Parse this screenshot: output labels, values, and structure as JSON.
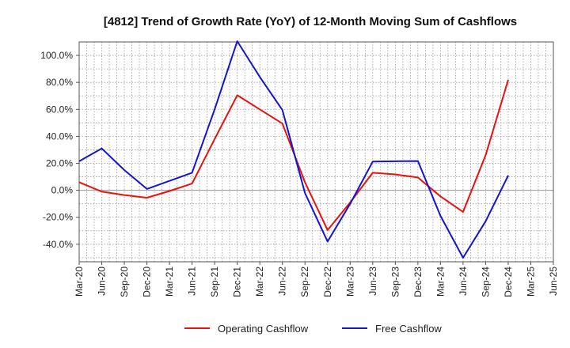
{
  "chart_data": {
    "type": "line",
    "title": "[4812]  Trend of Growth Rate (YoY) of 12-Month Moving Sum of Cashflows",
    "xlabel": "",
    "ylabel": "",
    "categories": [
      "Mar-20",
      "Jun-20",
      "Sep-20",
      "Dec-20",
      "Mar-21",
      "Jun-21",
      "Sep-21",
      "Dec-21",
      "Mar-22",
      "Jun-22",
      "Sep-22",
      "Dec-22",
      "Mar-23",
      "Jun-23",
      "Sep-23",
      "Dec-23",
      "Mar-24",
      "Jun-24",
      "Sep-24",
      "Dec-24",
      "Mar-25",
      "Jun-25"
    ],
    "y_ticks": [
      100,
      80,
      60,
      40,
      20,
      0,
      -20,
      -40
    ],
    "y_tick_labels": [
      "100.0%",
      "80.0%",
      "60.0%",
      "40.0%",
      "20.0%",
      "0.0%",
      "-20.0%",
      "-40.0%"
    ],
    "ylim": [
      -53,
      110
    ],
    "grid": true,
    "legend_position": "bottom",
    "series": [
      {
        "name": "Operating Cashflow",
        "color": "#e8130f",
        "values": [
          6,
          -1,
          -3.5,
          -5.5,
          -0.5,
          5,
          38,
          70.5,
          60,
          49.5,
          6,
          -29.5,
          -9,
          13,
          11.8,
          9.5,
          -4.5,
          -16,
          26,
          82,
          null,
          null
        ]
      },
      {
        "name": "Free Cashflow",
        "color": "#1414d2",
        "values": [
          21.5,
          31,
          15,
          1,
          7,
          13,
          60,
          110.5,
          84,
          59.5,
          -2,
          -38,
          -10,
          21.3,
          21.5,
          21.7,
          -19,
          -50,
          -23,
          11,
          null,
          null
        ]
      }
    ]
  }
}
